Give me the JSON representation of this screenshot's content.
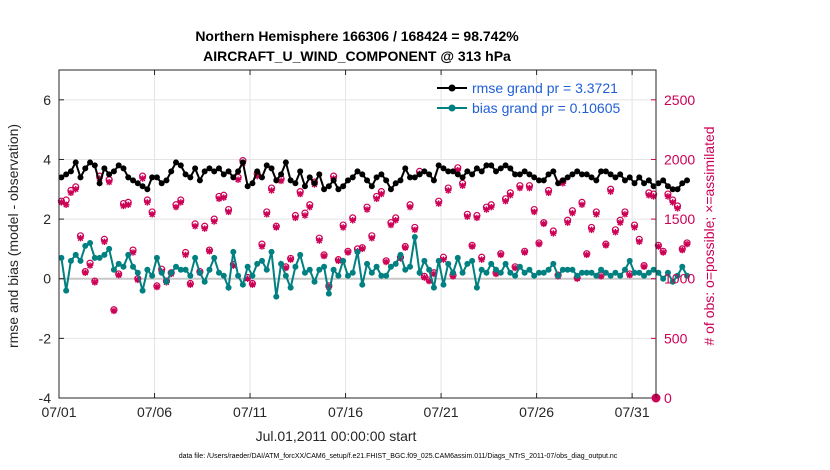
{
  "chart_data": {
    "type": "line",
    "title": "Northern Hemisphere 166306 / 168424 = 98.742%",
    "subtitle": "AIRCRAFT_U_WIND_COMPONENT @ 313 hPa",
    "xlabel": "Jul.01,2011 00:00:00 start",
    "ylabel_left": "rmse and bias (model - observation)",
    "ylabel_right": "# of obs: o=possible; ×=assimilated",
    "footer": "data file: /Users/raeder/DAI/ATM_forcXX/CAM6_setup/f.e21.FHIST_BGC.f09_025.CAM6assim.011/Diags_NTrS_2011-07/obs_diag_output.nc",
    "ylim_left": [
      -4,
      7
    ],
    "ylim_right": [
      0,
      2750
    ],
    "xlim_days": [
      0,
      31.25
    ],
    "x_ticks": [
      {
        "day": 0,
        "label": "07/01"
      },
      {
        "day": 5,
        "label": "07/06"
      },
      {
        "day": 10,
        "label": "07/11"
      },
      {
        "day": 15,
        "label": "07/16"
      },
      {
        "day": 20,
        "label": "07/21"
      },
      {
        "day": 25,
        "label": "07/26"
      },
      {
        "day": 30,
        "label": "07/31"
      }
    ],
    "y_ticks_left": [
      "-4",
      "-2",
      "0",
      "2",
      "4",
      "6"
    ],
    "y_ticks_right": [
      "0",
      "500",
      "1000",
      "1500",
      "2000",
      "2500"
    ],
    "colors": {
      "rmse": "#000000",
      "bias": "#008080",
      "obs": "#cc0055",
      "zero": "#c8c8c8"
    },
    "x_step_days": 0.25,
    "series": [
      {
        "name": "rmse grand pr = 3.3721",
        "values": [
          3.4,
          3.5,
          3.6,
          3.9,
          3.4,
          3.7,
          3.9,
          3.8,
          3.2,
          3.7,
          3.5,
          3.6,
          3.8,
          3.7,
          3.4,
          3.3,
          3.2,
          3.1,
          3.0,
          3.4,
          3.4,
          3.2,
          3.3,
          3.6,
          3.9,
          3.8,
          3.5,
          3.4,
          3.7,
          3.3,
          3.6,
          3.7,
          3.6,
          3.7,
          3.5,
          3.6,
          3.4,
          3.6,
          3.9,
          3.1,
          3.2,
          3.6,
          3.4,
          3.8,
          3.7,
          3.3,
          3.5,
          3.9,
          3.3,
          3.2,
          3.6,
          3.1,
          3.4,
          3.2,
          3.5,
          3.0,
          3.1,
          3.3,
          3.0,
          3.1,
          3.3,
          3.4,
          3.6,
          3.5,
          3.3,
          3.1,
          3.4,
          3.5,
          3.3,
          3.0,
          3.2,
          3.3,
          3.7,
          3.4,
          3.4,
          3.5,
          3.6,
          3.5,
          3.3,
          3.8,
          3.7,
          3.6,
          3.6,
          3.5,
          3.4,
          3.6,
          3.5,
          3.7,
          3.6,
          3.8,
          3.8,
          3.6,
          3.7,
          3.8,
          3.7,
          3.5,
          3.5,
          3.6,
          3.5,
          3.4,
          3.3,
          3.3,
          3.5,
          3.6,
          3.2,
          3.3,
          3.4,
          3.5,
          3.6,
          3.5,
          3.5,
          3.4,
          3.3,
          3.6,
          3.6,
          3.5,
          3.4,
          3.5,
          3.3,
          3.4,
          3.2,
          3.4,
          3.2,
          3.3,
          3.1,
          3.2,
          3.3,
          3.1,
          3.0,
          3.0,
          3.2,
          3.3
        ],
        "markers": "black-dots"
      },
      {
        "name": "bias grand pr = 0.10605",
        "values": [
          0.7,
          -0.4,
          0.6,
          0.8,
          0.6,
          1.1,
          1.2,
          0.7,
          0.7,
          0.8,
          1.0,
          0.3,
          0.5,
          0.4,
          0.8,
          0.4,
          0.2,
          -0.4,
          0.3,
          0.1,
          0.7,
          0.2,
          -0.1,
          0.2,
          0.4,
          0.3,
          0.3,
          0.1,
          0.7,
          0.2,
          -0.1,
          0.3,
          0.7,
          0.2,
          0.1,
          -0.3,
          0.9,
          0.1,
          -0.2,
          0.4,
          0.1,
          0.5,
          0.6,
          0.3,
          0.9,
          -0.6,
          0.5,
          0.1,
          -0.3,
          0.4,
          0.8,
          0.2,
          0.3,
          -0.1,
          0.3,
          0.4,
          -0.5,
          0.3,
          0.1,
          0.6,
          0.1,
          0.2,
          0.9,
          -0.2,
          0.5,
          0.2,
          0.4,
          0.1,
          0.1,
          0.4,
          0.5,
          0.8,
          0.3,
          0.4,
          1.4,
          0.2,
          0.6,
          0.3,
          -0.3,
          0.6,
          -0.2,
          0.5,
          0.2,
          0.7,
          0.2,
          0.5,
          0.6,
          -0.3,
          0.3,
          0.2,
          0.5,
          0.3,
          0.2,
          0.5,
          0.2,
          0.1,
          0.4,
          0.2,
          0.3,
          0.1,
          0.2,
          0.2,
          0.3,
          0.5,
          0.1,
          0.3,
          0.3,
          0.3,
          0.1,
          0.2,
          0.2,
          0.2,
          0.1,
          0.3,
          0.2,
          0.1,
          0.2,
          0.1,
          0.3,
          0.6,
          0.2,
          0.2,
          0.1,
          0.2,
          0.3,
          0.2,
          0.0,
          0.2,
          -0.1,
          0.1,
          0.4,
          0.1
        ],
        "markers": "teal-dots"
      }
    ],
    "obs_possible": [
      1650,
      1660,
      1740,
      1770,
      1360,
      1060,
      1130,
      980,
      1860,
      1330,
      1830,
      740,
      1040,
      1630,
      1640,
      1240,
      1000,
      1860,
      1660,
      1560,
      940,
      1080,
      980,
      1050,
      1620,
      1660,
      1220,
      960,
      1460,
      1060,
      1440,
      1240,
      1500,
      1690,
      1700,
      1580,
      1120,
      1850,
      1990,
      1010,
      960,
      1880,
      1290,
      1560,
      1760,
      1440,
      1840,
      1100,
      1170,
      1530,
      1730,
      1550,
      1620,
      1810,
      1340,
      1200,
      940,
      1860,
      1160,
      1450,
      1230,
      1510,
      1250,
      1260,
      1600,
      1360,
      1690,
      1730,
      1150,
      1470,
      1510,
      1180,
      1270,
      1620,
      1430,
      1900,
      1020,
      990,
      1050,
      1650,
      1180,
      1760,
      1030,
      1930,
      1800,
      1540,
      1280,
      1530,
      1180,
      1600,
      1620,
      1050,
      1210,
      1670,
      1720,
      1100,
      1780,
      1230,
      1780,
      1580,
      1300,
      1470,
      1740,
      1400,
      1030,
      1820,
      1490,
      1570,
      1010,
      1640,
      1210,
      1430,
      1560,
      1030,
      1290,
      1750,
      1410,
      1490,
      1560,
      1040,
      1450,
      1330,
      1110,
      1720,
      1710,
      1280,
      1230,
      1710,
      1660,
      1610,
      1250,
      1300
    ],
    "obs_assimilated": [
      1640,
      1620,
      1720,
      1750,
      1340,
      1050,
      1110,
      970,
      1840,
      1310,
      1810,
      730,
      1030,
      1610,
      1620,
      1220,
      990,
      1840,
      1640,
      1540,
      930,
      1060,
      970,
      1040,
      1600,
      1640,
      1200,
      950,
      1440,
      1050,
      1420,
      1230,
      1480,
      1670,
      1680,
      1560,
      1110,
      1830,
      1970,
      1000,
      950,
      1860,
      1270,
      1540,
      1740,
      1430,
      1820,
      1090,
      1160,
      1510,
      1710,
      1530,
      1600,
      1790,
      1320,
      1190,
      930,
      1840,
      1150,
      1430,
      1220,
      1490,
      1230,
      1250,
      1580,
      1340,
      1670,
      1710,
      1140,
      1450,
      1490,
      1170,
      1260,
      1600,
      1410,
      1880,
      1010,
      980,
      1040,
      1630,
      1160,
      1740,
      1020,
      1910,
      1780,
      1520,
      1270,
      1510,
      1160,
      1580,
      1600,
      1040,
      1200,
      1650,
      1700,
      1090,
      1760,
      1220,
      1760,
      1560,
      1290,
      1460,
      1720,
      1380,
      1020,
      1800,
      1470,
      1550,
      1000,
      1620,
      1200,
      1410,
      1540,
      1020,
      1280,
      1730,
      1390,
      1470,
      1540,
      1030,
      1430,
      1310,
      1100,
      1700,
      1690,
      1270,
      1220,
      1690,
      1640,
      1590,
      1240,
      1290
    ],
    "legend": {
      "location": "top-right",
      "rmse": "rmse grand pr = 3.3721",
      "bias": "bias grand pr = 0.10605"
    }
  }
}
